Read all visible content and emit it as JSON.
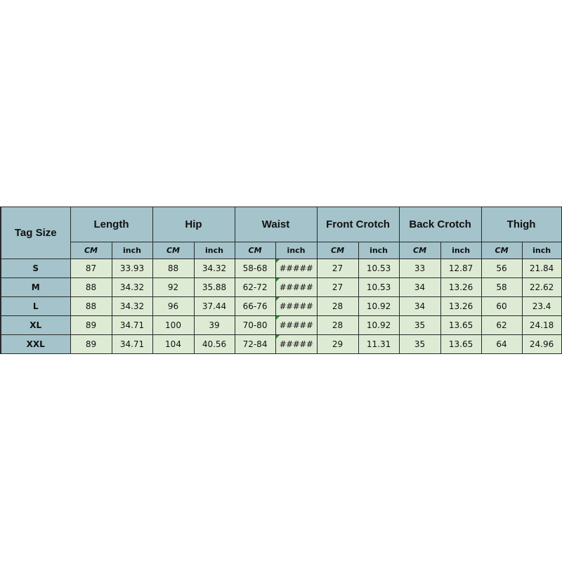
{
  "table": {
    "corner_header": "Tag Size",
    "groups": [
      "Length",
      "Hip",
      "Waist",
      "Front Crotch",
      "Back Crotch",
      "Thigh"
    ],
    "units": [
      "CM",
      "inch"
    ],
    "rows": [
      {
        "size": "S",
        "values": [
          "87",
          "33.93",
          "88",
          "34.32",
          "58-68",
          "#####",
          "27",
          "10.53",
          "33",
          "12.87",
          "56",
          "21.84"
        ]
      },
      {
        "size": "M",
        "values": [
          "88",
          "34.32",
          "92",
          "35.88",
          "62-72",
          "#####",
          "27",
          "10.53",
          "34",
          "13.26",
          "58",
          "22.62"
        ]
      },
      {
        "size": "L",
        "values": [
          "88",
          "34.32",
          "96",
          "37.44",
          "66-76",
          "#####",
          "28",
          "10.92",
          "34",
          "13.26",
          "60",
          "23.4"
        ]
      },
      {
        "size": "XL",
        "values": [
          "89",
          "34.71",
          "100",
          "39",
          "70-80",
          "#####",
          "28",
          "10.92",
          "35",
          "13.65",
          "62",
          "24.18"
        ]
      },
      {
        "size": "XXL",
        "values": [
          "89",
          "34.71",
          "104",
          "40.56",
          "72-84",
          "#####",
          "29",
          "11.31",
          "35",
          "13.65",
          "64",
          "24.96"
        ]
      }
    ]
  },
  "colors": {
    "header": "#a4c3ca",
    "cell": "#deebd4",
    "error_marker": "#2b8a2b"
  }
}
